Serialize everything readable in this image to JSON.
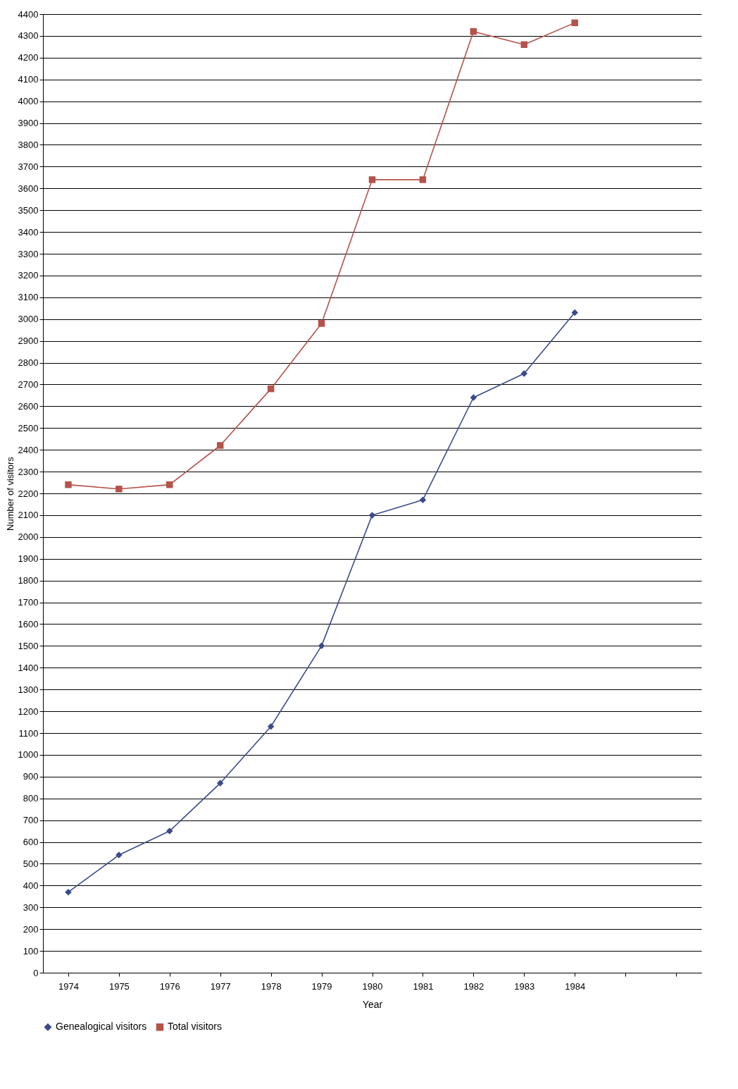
{
  "chart_data": {
    "type": "line",
    "xlabel": "Year",
    "ylabel": "Number of visitors",
    "categories": [
      "1974",
      "1975",
      "1976",
      "1977",
      "1978",
      "1979",
      "1980",
      "1981",
      "1982",
      "1983",
      "1984",
      null,
      null
    ],
    "series": [
      {
        "name": "Genealogical visitors",
        "color": "#3b4a8c",
        "marker": "diamond",
        "values": [
          370,
          540,
          650,
          870,
          1130,
          1500,
          2100,
          2170,
          2640,
          2750,
          3030,
          null,
          null
        ]
      },
      {
        "name": "Total visitors",
        "color": "#b5524a",
        "marker": "square",
        "values": [
          2240,
          2220,
          2240,
          2420,
          2680,
          2980,
          3640,
          3640,
          4320,
          4260,
          4360,
          null,
          null
        ]
      }
    ],
    "ylim": [
      0,
      4400
    ],
    "yticks": [
      0,
      100,
      200,
      300,
      400,
      500,
      600,
      700,
      800,
      900,
      1000,
      1100,
      1200,
      1300,
      1400,
      1500,
      1600,
      1700,
      1800,
      1900,
      2000,
      2100,
      2200,
      2300,
      2400,
      2500,
      2600,
      2700,
      2800,
      2900,
      3000,
      3100,
      3200,
      3300,
      3400,
      3500,
      3600,
      3700,
      3800,
      3900,
      4000,
      4100,
      4200,
      4300,
      4400
    ],
    "grid": "y",
    "legend": "bottom",
    "line_style": "solid"
  }
}
